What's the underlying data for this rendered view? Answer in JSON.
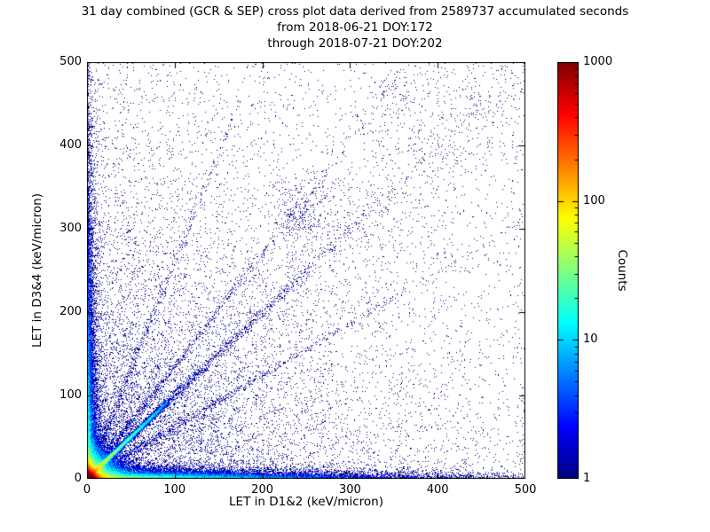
{
  "title": {
    "line1": "31 day combined (GCR & SEP) cross plot data derived from 2589737 accumulated seconds",
    "line2": "from 2018-06-21 DOY:172",
    "line3": "through 2018-07-21 DOY:202"
  },
  "chart_data": {
    "type": "heatmap",
    "subtype": "scatter-density-crossplot",
    "xlabel": "LET in D1&2 (keV/micron)",
    "ylabel": "LET in D3&4 (keV/micron)",
    "xlim": [
      0,
      500
    ],
    "ylim": [
      0,
      500
    ],
    "xticks": [
      0,
      100,
      200,
      300,
      400,
      500
    ],
    "yticks": [
      0,
      100,
      200,
      300,
      400,
      500
    ],
    "grid": false,
    "background": "#ffffff",
    "point_color_low": "#000080",
    "colorbar": {
      "label": "Counts",
      "scale": "log",
      "min": 1,
      "max": 1000,
      "ticks": [
        1,
        10,
        100,
        1000
      ],
      "colormap": "jet",
      "position": "right"
    },
    "features": [
      {
        "kind": "exp",
        "count": 120000,
        "sx": 3.5,
        "sy": 3.5
      },
      {
        "kind": "exp",
        "count": 40000,
        "sx": 10,
        "sy": 10
      },
      {
        "kind": "exp",
        "count": 26000,
        "sx": 110,
        "sy": 3.5
      },
      {
        "kind": "exp",
        "count": 15000,
        "sx": 3.5,
        "sy": 110
      },
      {
        "kind": "exp",
        "count": 9000,
        "sx": 140,
        "sy": 140
      },
      {
        "kind": "uniform",
        "count": 2800
      },
      {
        "kind": "ray",
        "count": 12000,
        "slope": 1,
        "rscale": 45,
        "rmax": 130,
        "jitter": 1.2
      },
      {
        "kind": "ray",
        "count": 2500,
        "slope": 1,
        "rscale": 120,
        "rmax": 700,
        "jitter": 2.5
      },
      {
        "kind": "ray",
        "count": 900,
        "slope": 1.35,
        "rscale": 150,
        "rmax": 600,
        "jitter": 2
      },
      {
        "kind": "ray",
        "count": 900,
        "slope": 0.62,
        "rscale": 150,
        "rmax": 600,
        "jitter": 2
      },
      {
        "kind": "ray",
        "count": 600,
        "slope": 2.6,
        "rscale": 180,
        "rmax": 600,
        "jitter": 2
      },
      {
        "kind": "band",
        "count": 1400,
        "slope": 1,
        "jitter": 55
      },
      {
        "kind": "gauss",
        "count": 260,
        "cx": 245,
        "cy": 320,
        "sx": 16,
        "sy": 22
      },
      {
        "kind": "gauss",
        "count": 90,
        "cx": 350,
        "cy": 465,
        "sx": 14,
        "sy": 18
      }
    ]
  }
}
